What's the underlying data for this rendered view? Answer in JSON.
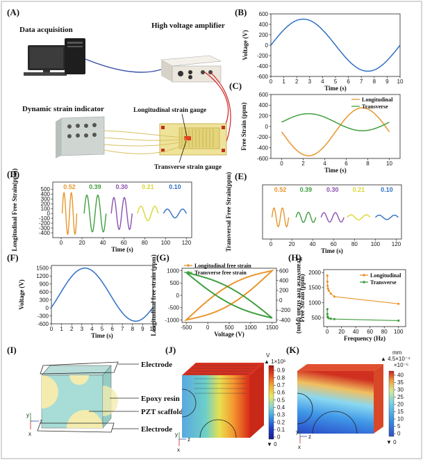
{
  "panels": {
    "A": {
      "label": "(A)",
      "data_acquisition": "Data acquisition",
      "high_voltage_amplifier": "High voltage amplifier",
      "dynamic_strain_indicator": "Dynamic strain indicator",
      "longitudinal_gauge": "Longitudinal strain gauge",
      "transverse_gauge": "Transverse strain gauge"
    },
    "B": {
      "label": "(B)"
    },
    "C": {
      "label": "(C)"
    },
    "D": {
      "label": "(D)"
    },
    "E": {
      "label": "(E)"
    },
    "F": {
      "label": "(F)"
    },
    "G": {
      "label": "(G)"
    },
    "H": {
      "label": "(H)"
    },
    "I": {
      "label": "(I)",
      "electrode_top": "Electrode",
      "epoxy": "Epoxy resin",
      "pzt": "PZT scaffold",
      "electrode_bottom": "Electrode",
      "axis_y": "y",
      "axis_z": "z",
      "axis_x": "x"
    },
    "J": {
      "label": "(J)",
      "unit": "V",
      "multiplier": "▲ 1×10³",
      "ticks": [
        "0.9",
        "0.8",
        "0.7",
        "0.6",
        "0.5",
        "0.4",
        "0.3",
        "0.2",
        "0.1",
        "0"
      ],
      "bottom": "▼ 0",
      "axis_y": "y",
      "axis_z": "z",
      "axis_x": "x"
    },
    "K": {
      "label": "(K)",
      "unit": "mm",
      "multiplier": "▲ 4.5×10⁻⁴",
      "sub_multiplier": "×10⁻⁵",
      "ticks": [
        "40",
        "35",
        "30",
        "25",
        "20",
        "15",
        "10",
        "5",
        "0"
      ],
      "bottom": "▼ 0",
      "axis_y": "y",
      "axis_z": "z",
      "axis_x": "x"
    }
  },
  "chart_data": [
    {
      "id": "B",
      "type": "line",
      "xlabel": "Time (s)",
      "ylabel": "Voltage (V)",
      "xlim": [
        0,
        10
      ],
      "ylim": [
        -600,
        600
      ],
      "xticks": [
        0,
        1,
        2,
        3,
        4,
        5,
        6,
        7,
        8,
        9,
        10
      ],
      "yticks": [
        -600,
        -400,
        -200,
        0,
        200,
        400,
        600
      ],
      "series": [
        {
          "shape": "sine",
          "amplitude": 500,
          "period": 10,
          "offset": 0,
          "x_range": [
            0,
            10
          ],
          "color": "#2e6fc4"
        }
      ]
    },
    {
      "id": "C",
      "type": "line",
      "xlabel": "Time (s)",
      "ylabel": "Free Strain (ppm)",
      "xlim": [
        -1,
        11
      ],
      "ylim": [
        -600,
        600
      ],
      "xticks": [
        0,
        2,
        4,
        6,
        8,
        10
      ],
      "yticks": [
        -600,
        -400,
        -200,
        0,
        200,
        400,
        600
      ],
      "legend_position": "top-right",
      "series": [
        {
          "name": "Longitudinal",
          "shape": "sine",
          "amplitude": -450,
          "period": 10,
          "offset": -100,
          "x_range": [
            0,
            10
          ],
          "color": "#e8952b"
        },
        {
          "name": "Transverse",
          "shape": "sine",
          "amplitude": 160,
          "period": 10,
          "offset": 80,
          "x_range": [
            0,
            10
          ],
          "color": "#3f9e3f"
        }
      ]
    },
    {
      "id": "D",
      "type": "line",
      "xlabel": "Time (s)",
      "ylabel": "Longitudinal Free Strain(ppm)",
      "xlim": [
        -8,
        125
      ],
      "ylim": [
        -500,
        650
      ],
      "xticks": [
        0,
        20,
        40,
        60,
        80,
        100,
        120
      ],
      "yticks": [
        -400,
        -300,
        -200,
        -100,
        0,
        100,
        200,
        300,
        400,
        500
      ],
      "annotations": [
        "0.52",
        "0.39",
        "0.30",
        "0.21",
        "0.10"
      ],
      "series": [
        {
          "name": "0.52",
          "x_range": [
            1,
            15
          ],
          "cycles": 2.0,
          "amplitude": 430,
          "color": "#e8952b"
        },
        {
          "name": "0.39",
          "x_range": [
            22,
            43
          ],
          "cycles": 2.0,
          "amplitude": 380,
          "color": "#3f9e3f"
        },
        {
          "name": "0.30",
          "x_range": [
            48,
            68
          ],
          "cycles": 2.0,
          "amplitude": 330,
          "color": "#8a4fb0"
        },
        {
          "name": "0.21",
          "x_range": [
            73,
            93
          ],
          "cycles": 1.5,
          "amplitude": 150,
          "color": "#d8d830"
        },
        {
          "name": "0.10",
          "x_range": [
            98,
            120
          ],
          "cycles": 1.5,
          "amplitude": 90,
          "color": "#2e6fc4"
        }
      ]
    },
    {
      "id": "E",
      "type": "line",
      "xlabel": "Time (s)",
      "ylabel": "Transversal Free Strain(ppm)",
      "xlim": [
        -8,
        125
      ],
      "ylim": [
        -300,
        450
      ],
      "xticks": [
        0,
        20,
        40,
        60,
        80,
        100,
        120
      ],
      "yticks": [],
      "annotations": [
        "0.52",
        "0.39",
        "0.30",
        "0.21",
        "0.10"
      ],
      "series": [
        {
          "name": "0.52",
          "x_range": [
            1,
            17
          ],
          "cycles": 2.0,
          "amplitude": 130,
          "color": "#e8952b"
        },
        {
          "name": "0.39",
          "x_range": [
            24,
            43
          ],
          "cycles": 2.0,
          "amplitude": 70,
          "color": "#3f9e3f"
        },
        {
          "name": "0.30",
          "x_range": [
            48,
            70
          ],
          "cycles": 2.0,
          "amplitude": 65,
          "color": "#8a4fb0"
        },
        {
          "name": "0.21",
          "x_range": [
            73,
            95
          ],
          "cycles": 1.5,
          "amplitude": 35,
          "color": "#d8d830"
        },
        {
          "name": "0.10",
          "x_range": [
            100,
            122
          ],
          "cycles": 1.5,
          "amplitude": 30,
          "color": "#2e6fc4"
        }
      ]
    },
    {
      "id": "F",
      "type": "line",
      "xlabel": "Time (s)",
      "ylabel": "Voltage (V)",
      "xlim": [
        0,
        10
      ],
      "ylim": [
        -600,
        1600
      ],
      "xticks": [
        0,
        1,
        2,
        3,
        4,
        5,
        6,
        7,
        8,
        9,
        10
      ],
      "yticks": [
        -600,
        -300,
        0,
        300,
        600,
        900,
        1200,
        1500
      ],
      "series": [
        {
          "shape": "sine",
          "amplitude": 1000,
          "period": 10,
          "offset": 500,
          "phase_shift_s": 0.8,
          "x_range": [
            0,
            10
          ],
          "color": "#2e6fc4"
        }
      ]
    },
    {
      "id": "G",
      "type": "line",
      "xlabel": "Voltage (V)",
      "ylabel": "Longitudinal free strain (ppm)",
      "y2label": "Transverse free strain (ppm)",
      "xlim": [
        -600,
        1600
      ],
      "ylim": [
        -1100,
        1100
      ],
      "y2lim": [
        -450,
        650
      ],
      "xticks": [
        -500,
        0,
        500,
        1000,
        1500
      ],
      "yticks": [
        -1000,
        -500,
        0,
        500,
        1000
      ],
      "y2ticks": [
        -400,
        -200,
        0,
        200,
        400,
        600
      ],
      "legend_position": "top-left",
      "series": [
        {
          "name": "Longitudinal free strain",
          "shape": "butterfly-loop",
          "color": "#e8952b",
          "x_range": [
            -500,
            1500
          ],
          "y_at_min": -1000,
          "y_at_max": 1000,
          "hysteresis": 400
        },
        {
          "name": "Transverse free strain",
          "shape": "butterfly-loop",
          "axis": "y2",
          "color": "#3f9e3f",
          "x_range": [
            -500,
            1500
          ],
          "y_at_min": 560,
          "y_at_max": -360,
          "hysteresis": 160
        }
      ]
    },
    {
      "id": "H",
      "type": "line",
      "xlabel": "Frequency (Hz)",
      "ylabel": "Free Strain (ppm)",
      "xlim": [
        -5,
        110
      ],
      "ylim": [
        200,
        2100
      ],
      "xticks": [
        0,
        20,
        40,
        60,
        80,
        100
      ],
      "yticks": [
        500,
        1000,
        1500,
        2000
      ],
      "legend_position": "top-right",
      "series": [
        {
          "name": "Longitudinal",
          "x": [
            0.1,
            0.2,
            0.5,
            1,
            2,
            5,
            10,
            100
          ],
          "values": [
            1900,
            1700,
            1560,
            1470,
            1400,
            1300,
            1200,
            960
          ],
          "color": "#e8952b"
        },
        {
          "name": "Transverse",
          "x": [
            0.1,
            0.2,
            0.5,
            1,
            2,
            5,
            10,
            100
          ],
          "values": [
            780,
            620,
            530,
            500,
            480,
            460,
            450,
            400
          ],
          "color": "#3f9e3f"
        }
      ]
    }
  ]
}
